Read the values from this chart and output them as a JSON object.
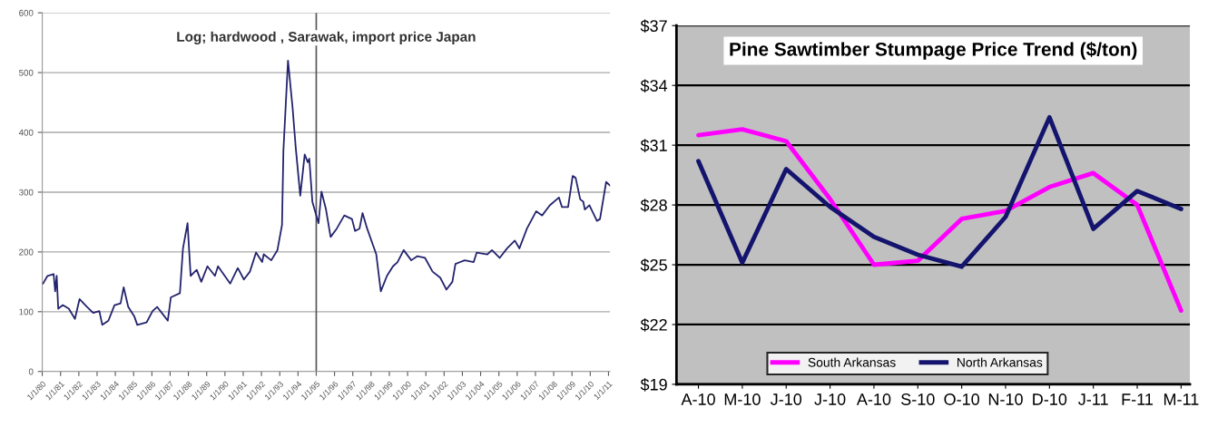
{
  "chart_data": [
    {
      "type": "line",
      "title": "Log; hardwood , Sarawak, import price Japan",
      "series": [
        {
          "color": "#23236e",
          "x": [
            "1980-01",
            "1980-04",
            "1980-08",
            "1980-09",
            "1980-10",
            "1980-11",
            "1981-02",
            "1981-06",
            "1981-10",
            "1982-01",
            "1982-06",
            "1982-10",
            "1983-02",
            "1983-04",
            "1983-08",
            "1983-12",
            "1984-04",
            "1984-06",
            "1984-09",
            "1985-01",
            "1985-03",
            "1985-09",
            "1986-01",
            "1986-04",
            "1986-08",
            "1986-11",
            "1987-01",
            "1987-07",
            "1987-09",
            "1987-12",
            "1988-02",
            "1988-06",
            "1988-09",
            "1989-01",
            "1989-06",
            "1989-08",
            "1990-04",
            "1990-09",
            "1991-01",
            "1991-05",
            "1991-09",
            "1992-01",
            "1992-02",
            "1992-07",
            "1992-11",
            "1993-02",
            "1993-03",
            "1993-06",
            "1993-09",
            "1993-11",
            "1994-02",
            "1994-05",
            "1994-07",
            "1994-08",
            "1994-10",
            "1995-02",
            "1995-04",
            "1995-07",
            "1995-10",
            "1996-02",
            "1996-07",
            "1996-12",
            "1997-02",
            "1997-05",
            "1997-07",
            "1997-10",
            "1998-04",
            "1998-07",
            "1998-11",
            "1999-03",
            "1999-06",
            "1999-10",
            "2000-03",
            "2000-07",
            "2000-12",
            "2001-05",
            "2001-10",
            "2002-02",
            "2002-06",
            "2002-08",
            "2003-02",
            "2003-08",
            "2003-10",
            "2004-05",
            "2004-08",
            "2005-01",
            "2005-06",
            "2005-11",
            "2006-02",
            "2006-07",
            "2007-01",
            "2007-05",
            "2007-10",
            "2008-04",
            "2008-06",
            "2008-10",
            "2009-01",
            "2009-03",
            "2009-06",
            "2009-08",
            "2009-09",
            "2009-12",
            "2010-05",
            "2010-07",
            "2010-11",
            "2011-02"
          ],
          "values": [
            147,
            160,
            163,
            134,
            160,
            105,
            111,
            105,
            88,
            121,
            108,
            98,
            101,
            78,
            85,
            111,
            114,
            141,
            108,
            92,
            78,
            82,
            101,
            108,
            95,
            85,
            124,
            131,
            206,
            248,
            160,
            170,
            150,
            176,
            160,
            176,
            147,
            173,
            154,
            167,
            199,
            183,
            196,
            186,
            203,
            245,
            369,
            520,
            441,
            376,
            294,
            363,
            350,
            356,
            284,
            248,
            301,
            271,
            225,
            239,
            261,
            255,
            235,
            239,
            265,
            239,
            196,
            134,
            160,
            176,
            183,
            203,
            186,
            193,
            190,
            167,
            157,
            137,
            150,
            180,
            186,
            183,
            199,
            196,
            203,
            190,
            206,
            219,
            206,
            239,
            268,
            261,
            278,
            291,
            275,
            275,
            327,
            324,
            288,
            284,
            271,
            278,
            252,
            255,
            317,
            310
          ]
        }
      ],
      "xlim": [
        "1980-01-01",
        "2011-02-01"
      ],
      "xticks": [
        {
          "value": "1980-01-01",
          "label": "1/1/80"
        },
        {
          "value": "1981-01-01",
          "label": "1/1/81"
        },
        {
          "value": "1982-01-01",
          "label": "1/1/82"
        },
        {
          "value": "1983-01-01",
          "label": "1/1/83"
        },
        {
          "value": "1984-01-01",
          "label": "1/1/84"
        },
        {
          "value": "1985-01-01",
          "label": "1/1/85"
        },
        {
          "value": "1986-01-01",
          "label": "1/1/86"
        },
        {
          "value": "1987-01-01",
          "label": "1/1/87"
        },
        {
          "value": "1988-01-01",
          "label": "1/1/88"
        },
        {
          "value": "1989-01-01",
          "label": "1/1/89"
        },
        {
          "value": "1990-01-01",
          "label": "1/1/90"
        },
        {
          "value": "1991-01-01",
          "label": "1/1/91"
        },
        {
          "value": "1992-01-01",
          "label": "1/1/92"
        },
        {
          "value": "1993-01-01",
          "label": "1/1/93"
        },
        {
          "value": "1994-01-01",
          "label": "1/1/94"
        },
        {
          "value": "1995-01-01",
          "label": "1/1/95"
        },
        {
          "value": "1996-01-01",
          "label": "1/1/96"
        },
        {
          "value": "1997-01-01",
          "label": "1/1/97"
        },
        {
          "value": "1998-01-01",
          "label": "1/1/98"
        },
        {
          "value": "1999-01-01",
          "label": "1/1/99"
        },
        {
          "value": "2000-01-01",
          "label": "1/1/00"
        },
        {
          "value": "2001-01-01",
          "label": "1/1/01"
        },
        {
          "value": "2002-01-01",
          "label": "1/1/02"
        },
        {
          "value": "2003-01-01",
          "label": "1/1/03"
        },
        {
          "value": "2004-01-01",
          "label": "1/1/04"
        },
        {
          "value": "2005-01-01",
          "label": "1/1/05"
        },
        {
          "value": "2006-01-01",
          "label": "1/1/06"
        },
        {
          "value": "2007-01-01",
          "label": "1/1/07"
        },
        {
          "value": "2008-01-01",
          "label": "1/1/08"
        },
        {
          "value": "2009-01-01",
          "label": "1/1/09"
        },
        {
          "value": "2010-01-01",
          "label": "1/1/10"
        },
        {
          "value": "2011-01-01",
          "label": "1/1/11"
        }
      ],
      "ylim": [
        0,
        600
      ],
      "yticks": [
        0,
        100,
        200,
        300,
        400,
        500,
        600
      ],
      "ref_lines": [
        {
          "axis": "x",
          "value": "1995-01-01",
          "color": "#555555"
        }
      ],
      "grid": "y"
    },
    {
      "type": "line",
      "title": "Pine Sawtimber Stumpage Price Trend ($/ton)",
      "categories": [
        "A-10",
        "M-10",
        "J-10",
        "J-10",
        "A-10",
        "S-10",
        "O-10",
        "N-10",
        "D-10",
        "J-11",
        "F-11",
        "M-11"
      ],
      "series": [
        {
          "name": "South Arkansas",
          "color": "#ff00ff",
          "values": [
            31.5,
            31.8,
            31.2,
            28.3,
            25.0,
            25.2,
            27.3,
            27.7,
            28.9,
            29.6,
            28.0,
            22.7
          ]
        },
        {
          "name": "North Arkansas",
          "color": "#14146e",
          "values": [
            30.2,
            25.1,
            29.8,
            27.9,
            26.4,
            25.5,
            24.9,
            27.4,
            32.4,
            26.8,
            28.7,
            27.8
          ]
        }
      ],
      "ylim": [
        19,
        37
      ],
      "yticks": [
        {
          "value": 19,
          "label": "$19"
        },
        {
          "value": 22,
          "label": "$22"
        },
        {
          "value": 25,
          "label": "$25"
        },
        {
          "value": 28,
          "label": "$28"
        },
        {
          "value": 31,
          "label": "$31"
        },
        {
          "value": 34,
          "label": "$34"
        },
        {
          "value": 37,
          "label": "$37"
        }
      ],
      "grid": "y",
      "legend": "bottom"
    }
  ]
}
